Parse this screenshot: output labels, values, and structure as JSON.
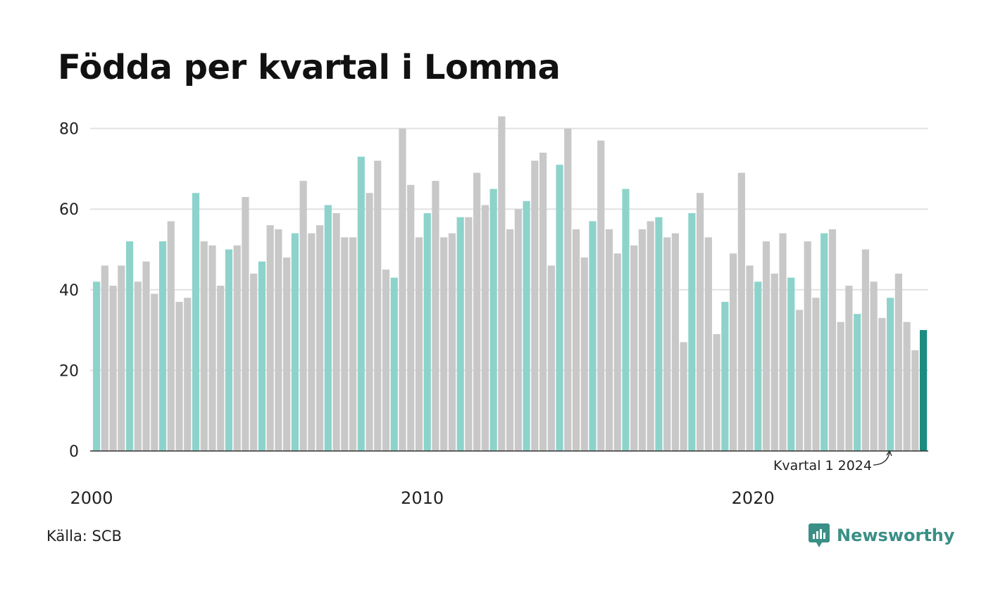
{
  "title": "Födda per kvartal i Lomma",
  "source": "Källa: SCB",
  "brand": "Newsworthy",
  "colors": {
    "q1": "#8dd3cc",
    "other": "#c8c8c8",
    "latest": "#1a8c80",
    "grid": "#e2e2e2",
    "axis": "#333333",
    "brand": "#3a8f86"
  },
  "chart_data": {
    "type": "bar",
    "x_start": "2000 Q1",
    "x_ticks": [
      "2000",
      "2010",
      "2020"
    ],
    "y_ticks": [
      "0",
      "20",
      "40",
      "60",
      "80"
    ],
    "ylim": [
      0,
      85
    ],
    "grid": true,
    "highlight": "Q1 bars highlighted; latest bar (Kvartal 1 2024) emphasized",
    "annotation": "Kvartal 1 2024",
    "values": [
      42,
      46,
      41,
      46,
      52,
      42,
      47,
      39,
      52,
      57,
      37,
      38,
      64,
      52,
      51,
      41,
      50,
      51,
      63,
      44,
      47,
      56,
      55,
      48,
      54,
      67,
      54,
      56,
      61,
      59,
      53,
      53,
      73,
      64,
      72,
      45,
      43,
      80,
      66,
      53,
      59,
      67,
      53,
      54,
      58,
      58,
      69,
      61,
      65,
      83,
      55,
      60,
      62,
      72,
      74,
      46,
      71,
      80,
      55,
      48,
      57,
      77,
      55,
      49,
      65,
      51,
      55,
      57,
      58,
      53,
      54,
      27,
      59,
      64,
      53,
      29,
      37,
      49,
      69,
      46,
      42,
      52,
      44,
      54,
      43,
      35,
      52,
      38,
      54,
      55,
      32,
      41,
      34,
      50,
      42,
      33,
      38,
      44,
      32,
      25,
      30
    ]
  }
}
